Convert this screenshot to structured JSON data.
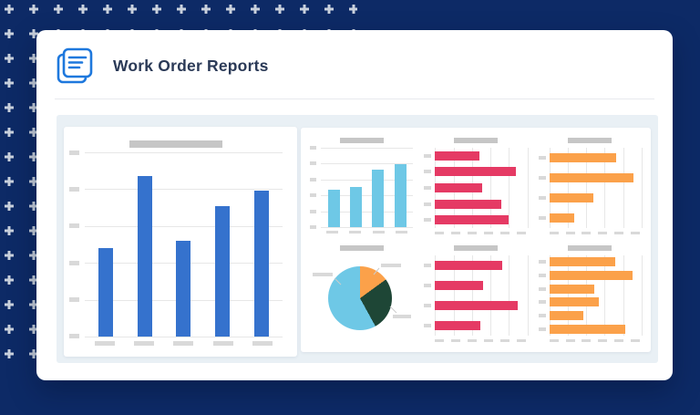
{
  "header": {
    "title": "Work Order Reports",
    "icon": "report-document-icon"
  },
  "colors": {
    "background_navy": "#0d2a66",
    "plus_pattern": "#c9d1dd",
    "card_white": "#ffffff",
    "title_text": "#2b3a57",
    "icon_blue": "#1e78dd",
    "divider": "#e7eaee",
    "panel_bg": "#e9f0f5",
    "placeholder_dark": "#c6c6c6",
    "placeholder_light": "#d9d9d9",
    "gridline": "#e7e7e7",
    "bar_blue": "#3572cd",
    "bar_cyan": "#6ec8e6",
    "bar_pink": "#e53a64",
    "bar_orange": "#fba14a",
    "pie_dark_green": "#1e4636"
  },
  "chart_data": [
    {
      "id": "main-bars",
      "type": "bar",
      "orientation": "vertical",
      "title": "",
      "title_placeholder": true,
      "categories": [
        "",
        "",
        "",
        "",
        ""
      ],
      "values": [
        48,
        87,
        52,
        71,
        79
      ],
      "ylim": [
        0,
        100
      ],
      "grid_count": 6,
      "axis_labels_placeholder": true,
      "color_key": "bar_blue"
    },
    {
      "id": "mini-cyan",
      "type": "bar",
      "orientation": "vertical",
      "title": "",
      "title_placeholder": true,
      "categories": [
        "",
        "",
        "",
        ""
      ],
      "values": [
        47,
        51,
        72,
        79
      ],
      "ylim": [
        0,
        100
      ],
      "grid_count": 6,
      "axis_labels_placeholder": true,
      "color_key": "bar_cyan"
    },
    {
      "id": "mini-pink-top",
      "type": "bar",
      "orientation": "horizontal",
      "title": "",
      "title_placeholder": true,
      "categories": [
        "",
        "",
        "",
        "",
        ""
      ],
      "values": [
        48,
        88,
        51,
        72,
        80
      ],
      "xlim": [
        0,
        100
      ],
      "grid_count": 6,
      "axis_labels_placeholder": true,
      "color_key": "bar_pink"
    },
    {
      "id": "mini-orange-top",
      "type": "bar",
      "orientation": "horizontal",
      "title": "",
      "title_placeholder": true,
      "categories": [
        "",
        "",
        "",
        ""
      ],
      "values": [
        72,
        91,
        48,
        27
      ],
      "xlim": [
        0,
        100
      ],
      "grid_count": 6,
      "axis_labels_placeholder": true,
      "color_key": "bar_orange"
    },
    {
      "id": "mini-pie",
      "type": "pie",
      "title": "",
      "title_placeholder": true,
      "labels_placeholder": true,
      "slices": [
        {
          "label": "",
          "value": 15,
          "color_key": "bar_orange"
        },
        {
          "label": "",
          "value": 27,
          "color_key": "pie_dark_green"
        },
        {
          "label": "",
          "value": 58,
          "color_key": "bar_cyan"
        }
      ],
      "start_angle_deg": 0
    },
    {
      "id": "mini-pink-bottom",
      "type": "bar",
      "orientation": "horizontal",
      "title": "",
      "title_placeholder": true,
      "categories": [
        "",
        "",
        "",
        ""
      ],
      "values": [
        73,
        52,
        89,
        49
      ],
      "xlim": [
        0,
        100
      ],
      "grid_count": 6,
      "axis_labels_placeholder": true,
      "color_key": "bar_pink"
    },
    {
      "id": "mini-orange-bottom",
      "type": "bar",
      "orientation": "horizontal",
      "title": "",
      "title_placeholder": true,
      "categories": [
        "",
        "",
        "",
        "",
        "",
        ""
      ],
      "values": [
        71,
        90,
        49,
        54,
        37,
        82
      ],
      "xlim": [
        0,
        100
      ],
      "grid_count": 6,
      "axis_labels_placeholder": true,
      "color_key": "bar_orange"
    }
  ]
}
